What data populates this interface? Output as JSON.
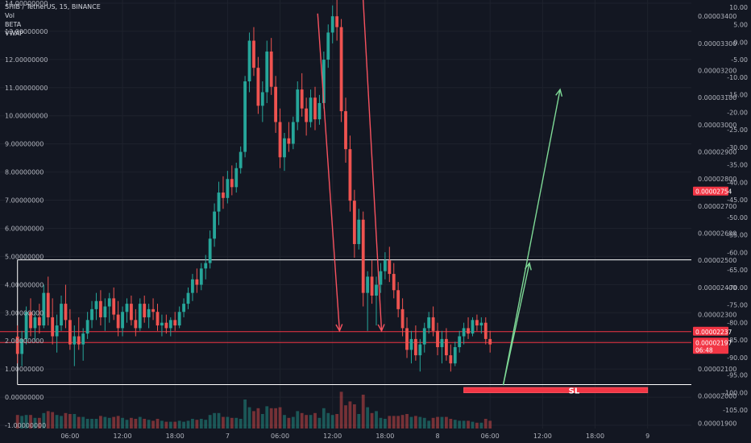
{
  "header": {
    "title": "SHIB / TetherUS, 15, BINANCE",
    "indicators": [
      "Vol",
      "BETA",
      "VWAP"
    ]
  },
  "chart_data": {
    "type": "candlestick",
    "left_axis": {
      "ticks": [
        "14.00000000",
        "13.00000000",
        "12.00000000",
        "11.00000000",
        "10.00000000",
        "9.00000000",
        "8.00000000",
        "7.00000000",
        "6.00000000",
        "5.00000000",
        "4.00000000",
        "3.00000000",
        "2.00000000",
        "1.00000000",
        "0.00000000",
        "-1.00000000"
      ],
      "values": [
        14,
        13,
        12,
        11,
        10,
        9,
        8,
        7,
        6,
        5,
        4,
        3,
        2,
        1,
        0,
        -1
      ]
    },
    "price_axis": {
      "ticks": [
        "0.00003400",
        "0.00003300",
        "0.00003200",
        "0.00003100",
        "0.00003000",
        "0.00002900",
        "0.00002800",
        "0.00002700",
        "0.00002600",
        "0.00002500",
        "0.00002400",
        "0.00002300",
        "0.00002100",
        "0.00002000",
        "0.00001900"
      ],
      "values": [
        3.4e-05,
        3.3e-05,
        3.2e-05,
        3.1e-05,
        3e-05,
        2.9e-05,
        2.8e-05,
        2.7e-05,
        2.6e-05,
        2.5e-05,
        2.4e-05,
        2.3e-05,
        2.1e-05,
        2e-05,
        1.9e-05
      ],
      "range": [
        1.88e-05,
        3.46e-05
      ]
    },
    "beta_axis": {
      "ticks": [
        "10.00",
        "5.00",
        "0.00",
        "-5.00",
        "-10.00",
        "-15.00",
        "-20.00",
        "-25.00",
        "-30.00",
        "-35.00",
        "-40.00",
        "-45.00",
        "-50.00",
        "-55.00",
        "-60.00",
        "-65.00",
        "-70.00",
        "-75.00",
        "-80.00",
        "-85.00",
        "-90.00",
        "-95.00",
        "-100.00",
        "-105.00"
      ],
      "values": [
        10,
        5,
        0,
        -5,
        -10,
        -15,
        -20,
        -25,
        -30,
        -35,
        -40,
        -45,
        -50,
        -55,
        -60,
        -65,
        -70,
        -75,
        -80,
        -85,
        -90,
        -95,
        -100,
        -105
      ]
    },
    "time_axis": {
      "ticks": [
        "06:00",
        "12:00",
        "18:00",
        "7",
        "06:00",
        "12:00",
        "18:00",
        "8",
        "06:00",
        "12:00",
        "18:00",
        "9"
      ],
      "hours": [
        6,
        12,
        18,
        24,
        30,
        36,
        42,
        48,
        54,
        60,
        66,
        72
      ],
      "range": [
        -2,
        77
      ]
    },
    "price_labels": [
      {
        "value": 2.754e-05,
        "text": "0.00002754",
        "color": "#f23645"
      },
      {
        "value": 2.237e-05,
        "text": "0.00002237",
        "color": "#f23645"
      },
      {
        "value": 2.197e-05,
        "text": "0.00002197",
        "color": "#f23645",
        "countdown": "06:48"
      }
    ],
    "horizontal_levels": [
      {
        "price": 2.502e-05,
        "color": "#ffffff"
      },
      {
        "price": 2.237e-05,
        "color": "#f23645"
      },
      {
        "price": 2.197e-05,
        "color": "#f23645"
      },
      {
        "price": 2.042e-05,
        "color": "#ffffff"
      }
    ],
    "stop_loss": {
      "label": "SL",
      "price_top": 2.031e-05,
      "price_bottom": 2.012e-05,
      "hour_start": 51,
      "hour_end": 72
    },
    "projection": [
      {
        "from_hour": 55.5,
        "from_price": 2.04e-05,
        "to_hour": 58.5,
        "to_price": 2.49e-05
      },
      {
        "from_hour": 55.5,
        "from_price": 2.04e-05,
        "to_hour": 62,
        "to_price": 3.13e-05
      }
    ],
    "red_arrows": [
      {
        "from_hour": 34.3,
        "from_price": 3.41e-05,
        "to_hour": 36.8,
        "to_price": 2.24e-05
      },
      {
        "from_hour": 39.5,
        "from_price": 3.46e-05,
        "to_hour": 41.6,
        "to_price": 2.24e-05
      }
    ],
    "candles": [
      {
        "h": 0.0,
        "o": 2.219e-05,
        "hi": 2.26e-05,
        "lo": 2.12e-05,
        "c": 2.155e-05
      },
      {
        "h": 0.5,
        "o": 2.155e-05,
        "hi": 2.24e-05,
        "lo": 2.11e-05,
        "c": 2.21e-05
      },
      {
        "h": 1.0,
        "o": 2.21e-05,
        "hi": 2.33e-05,
        "lo": 2.19e-05,
        "c": 2.31e-05
      },
      {
        "h": 1.5,
        "o": 2.31e-05,
        "hi": 2.36e-05,
        "lo": 2.22e-05,
        "c": 2.25e-05
      },
      {
        "h": 2.0,
        "o": 2.25e-05,
        "hi": 2.31e-05,
        "lo": 2.2e-05,
        "c": 2.29e-05
      },
      {
        "h": 2.5,
        "o": 2.29e-05,
        "hi": 2.34e-05,
        "lo": 2.23e-05,
        "c": 2.26e-05
      },
      {
        "h": 3.0,
        "o": 2.26e-05,
        "hi": 2.41e-05,
        "lo": 2.25e-05,
        "c": 2.38e-05
      },
      {
        "h": 3.5,
        "o": 2.38e-05,
        "hi": 2.44e-05,
        "lo": 2.26e-05,
        "c": 2.29e-05
      },
      {
        "h": 4.0,
        "o": 2.29e-05,
        "hi": 2.36e-05,
        "lo": 2.19e-05,
        "c": 2.22e-05
      },
      {
        "h": 4.5,
        "o": 2.22e-05,
        "hi": 2.3e-05,
        "lo": 2.16e-05,
        "c": 2.26e-05
      },
      {
        "h": 5.0,
        "o": 2.26e-05,
        "hi": 2.37e-05,
        "lo": 2.24e-05,
        "c": 2.34e-05
      },
      {
        "h": 5.5,
        "o": 2.34e-05,
        "hi": 2.41e-05,
        "lo": 2.25e-05,
        "c": 2.28e-05
      },
      {
        "h": 6.0,
        "o": 2.28e-05,
        "hi": 2.32e-05,
        "lo": 2.17e-05,
        "c": 2.19e-05
      },
      {
        "h": 6.5,
        "o": 2.19e-05,
        "hi": 2.26e-05,
        "lo": 2.11e-05,
        "c": 2.22e-05
      },
      {
        "h": 7.0,
        "o": 2.22e-05,
        "hi": 2.29e-05,
        "lo": 2.17e-05,
        "c": 2.19e-05
      },
      {
        "h": 7.5,
        "o": 2.19e-05,
        "hi": 2.25e-05,
        "lo": 2.13e-05,
        "c": 2.23e-05
      },
      {
        "h": 8.0,
        "o": 2.23e-05,
        "hi": 2.31e-05,
        "lo": 2.21e-05,
        "c": 2.28e-05
      },
      {
        "h": 8.5,
        "o": 2.28e-05,
        "hi": 2.35e-05,
        "lo": 2.25e-05,
        "c": 2.32e-05
      },
      {
        "h": 9.0,
        "o": 2.32e-05,
        "hi": 2.38e-05,
        "lo": 2.28e-05,
        "c": 2.35e-05
      },
      {
        "h": 9.5,
        "o": 2.35e-05,
        "hi": 2.39e-05,
        "lo": 2.26e-05,
        "c": 2.29e-05
      },
      {
        "h": 10.0,
        "o": 2.29e-05,
        "hi": 2.36e-05,
        "lo": 2.24e-05,
        "c": 2.33e-05
      },
      {
        "h": 10.5,
        "o": 2.33e-05,
        "hi": 2.38e-05,
        "lo": 2.27e-05,
        "c": 2.36e-05
      },
      {
        "h": 11.0,
        "o": 2.36e-05,
        "hi": 2.4e-05,
        "lo": 2.28e-05,
        "c": 2.3e-05
      },
      {
        "h": 11.5,
        "o": 2.3e-05,
        "hi": 2.35e-05,
        "lo": 2.22e-05,
        "c": 2.25e-05
      },
      {
        "h": 12.0,
        "o": 2.25e-05,
        "hi": 2.33e-05,
        "lo": 2.22e-05,
        "c": 2.31e-05
      },
      {
        "h": 12.5,
        "o": 2.31e-05,
        "hi": 2.36e-05,
        "lo": 2.27e-05,
        "c": 2.34e-05
      },
      {
        "h": 13.0,
        "o": 2.34e-05,
        "hi": 2.37e-05,
        "lo": 2.26e-05,
        "c": 2.28e-05
      },
      {
        "h": 13.5,
        "o": 2.28e-05,
        "hi": 2.32e-05,
        "lo": 2.22e-05,
        "c": 2.25e-05
      },
      {
        "h": 14.0,
        "o": 2.25e-05,
        "hi": 2.36e-05,
        "lo": 2.24e-05,
        "c": 2.34e-05
      },
      {
        "h": 14.5,
        "o": 2.34e-05,
        "hi": 2.37e-05,
        "lo": 2.27e-05,
        "c": 2.29e-05
      },
      {
        "h": 15.0,
        "o": 2.29e-05,
        "hi": 2.34e-05,
        "lo": 2.25e-05,
        "c": 2.32e-05
      },
      {
        "h": 15.5,
        "o": 2.32e-05,
        "hi": 2.36e-05,
        "lo": 2.28e-05,
        "c": 2.31e-05
      },
      {
        "h": 16.0,
        "o": 2.31e-05,
        "hi": 2.34e-05,
        "lo": 2.24e-05,
        "c": 2.26e-05
      },
      {
        "h": 16.5,
        "o": 2.26e-05,
        "hi": 2.3e-05,
        "lo": 2.22e-05,
        "c": 2.27e-05
      },
      {
        "h": 17.0,
        "o": 2.27e-05,
        "hi": 2.3e-05,
        "lo": 2.23e-05,
        "c": 2.25e-05
      },
      {
        "h": 17.5,
        "o": 2.25e-05,
        "hi": 2.29e-05,
        "lo": 2.22e-05,
        "c": 2.28e-05
      },
      {
        "h": 18.0,
        "o": 2.28e-05,
        "hi": 2.31e-05,
        "lo": 2.24e-05,
        "c": 2.26e-05
      },
      {
        "h": 18.5,
        "o": 2.26e-05,
        "hi": 2.33e-05,
        "lo": 2.25e-05,
        "c": 2.31e-05
      },
      {
        "h": 19.0,
        "o": 2.31e-05,
        "hi": 2.36e-05,
        "lo": 2.29e-05,
        "c": 2.34e-05
      },
      {
        "h": 19.5,
        "o": 2.34e-05,
        "hi": 2.4e-05,
        "lo": 2.32e-05,
        "c": 2.38e-05
      },
      {
        "h": 20.0,
        "o": 2.38e-05,
        "hi": 2.45e-05,
        "lo": 2.35e-05,
        "c": 2.43e-05
      },
      {
        "h": 20.5,
        "o": 2.43e-05,
        "hi": 2.47e-05,
        "lo": 2.38e-05,
        "c": 2.41e-05
      },
      {
        "h": 21.0,
        "o": 2.41e-05,
        "hi": 2.49e-05,
        "lo": 2.39e-05,
        "c": 2.47e-05
      },
      {
        "h": 21.5,
        "o": 2.47e-05,
        "hi": 2.52e-05,
        "lo": 2.43e-05,
        "c": 2.49e-05
      },
      {
        "h": 22.0,
        "o": 2.49e-05,
        "hi": 2.61e-05,
        "lo": 2.47e-05,
        "c": 2.58e-05
      },
      {
        "h": 22.5,
        "o": 2.58e-05,
        "hi": 2.71e-05,
        "lo": 2.55e-05,
        "c": 2.68e-05
      },
      {
        "h": 23.0,
        "o": 2.68e-05,
        "hi": 2.79e-05,
        "lo": 2.63e-05,
        "c": 2.75e-05
      },
      {
        "h": 23.5,
        "o": 2.75e-05,
        "hi": 2.81e-05,
        "lo": 2.69e-05,
        "c": 2.73e-05
      },
      {
        "h": 24.0,
        "o": 2.73e-05,
        "hi": 2.83e-05,
        "lo": 2.71e-05,
        "c": 2.8e-05
      },
      {
        "h": 24.5,
        "o": 2.8e-05,
        "hi": 2.85e-05,
        "lo": 2.74e-05,
        "c": 2.77e-05
      },
      {
        "h": 25.0,
        "o": 2.77e-05,
        "hi": 2.86e-05,
        "lo": 2.75e-05,
        "c": 2.84e-05
      },
      {
        "h": 25.5,
        "o": 2.84e-05,
        "hi": 2.92e-05,
        "lo": 2.82e-05,
        "c": 2.9e-05
      },
      {
        "h": 26.0,
        "o": 2.9e-05,
        "hi": 3.18e-05,
        "lo": 2.88e-05,
        "c": 3.16e-05
      },
      {
        "h": 26.5,
        "o": 3.16e-05,
        "hi": 3.34e-05,
        "lo": 3.12e-05,
        "c": 3.31e-05
      },
      {
        "h": 27.0,
        "o": 3.31e-05,
        "hi": 3.36e-05,
        "lo": 3.18e-05,
        "c": 3.21e-05
      },
      {
        "h": 27.5,
        "o": 3.21e-05,
        "hi": 3.25e-05,
        "lo": 3.04e-05,
        "c": 3.07e-05
      },
      {
        "h": 28.0,
        "o": 3.07e-05,
        "hi": 3.16e-05,
        "lo": 3.01e-05,
        "c": 3.12e-05
      },
      {
        "h": 28.5,
        "o": 3.12e-05,
        "hi": 3.31e-05,
        "lo": 3.08e-05,
        "c": 3.27e-05
      },
      {
        "h": 29.0,
        "o": 3.27e-05,
        "hi": 3.32e-05,
        "lo": 3.11e-05,
        "c": 3.14e-05
      },
      {
        "h": 29.5,
        "o": 3.14e-05,
        "hi": 3.18e-05,
        "lo": 2.97e-05,
        "c": 3.01e-05
      },
      {
        "h": 30.0,
        "o": 3.01e-05,
        "hi": 3.06e-05,
        "lo": 2.84e-05,
        "c": 2.88e-05
      },
      {
        "h": 30.5,
        "o": 2.88e-05,
        "hi": 2.97e-05,
        "lo": 2.83e-05,
        "c": 2.95e-05
      },
      {
        "h": 31.0,
        "o": 2.95e-05,
        "hi": 3.01e-05,
        "lo": 2.9e-05,
        "c": 2.93e-05
      },
      {
        "h": 31.5,
        "o": 2.93e-05,
        "hi": 3.03e-05,
        "lo": 2.91e-05,
        "c": 3.01e-05
      },
      {
        "h": 32.0,
        "o": 3.01e-05,
        "hi": 3.16e-05,
        "lo": 2.98e-05,
        "c": 3.13e-05
      },
      {
        "h": 32.5,
        "o": 3.13e-05,
        "hi": 3.19e-05,
        "lo": 3.03e-05,
        "c": 3.06e-05
      },
      {
        "h": 33.0,
        "o": 3.06e-05,
        "hi": 3.1e-05,
        "lo": 2.96e-05,
        "c": 3.01e-05
      },
      {
        "h": 33.5,
        "o": 3.01e-05,
        "hi": 3.13e-05,
        "lo": 2.99e-05,
        "c": 3.1e-05
      },
      {
        "h": 34.0,
        "o": 3.1e-05,
        "hi": 3.14e-05,
        "lo": 2.98e-05,
        "c": 3.02e-05
      },
      {
        "h": 34.5,
        "o": 3.02e-05,
        "hi": 3.11e-05,
        "lo": 3e-05,
        "c": 3.08e-05
      },
      {
        "h": 35.0,
        "o": 3.08e-05,
        "hi": 3.27e-05,
        "lo": 3.06e-05,
        "c": 3.24e-05
      },
      {
        "h": 35.5,
        "o": 3.24e-05,
        "hi": 3.37e-05,
        "lo": 3.21e-05,
        "c": 3.34e-05
      },
      {
        "h": 36.0,
        "o": 3.34e-05,
        "hi": 3.44e-05,
        "lo": 3.3e-05,
        "c": 3.4e-05
      },
      {
        "h": 36.5,
        "o": 3.4e-05,
        "hi": 3.46e-05,
        "lo": 3.31e-05,
        "c": 3.36e-05
      },
      {
        "h": 37.0,
        "o": 3.36e-05,
        "hi": 3.39e-05,
        "lo": 3.01e-05,
        "c": 3.05e-05
      },
      {
        "h": 37.5,
        "o": 3.05e-05,
        "hi": 3.1e-05,
        "lo": 2.86e-05,
        "c": 2.91e-05
      },
      {
        "h": 38.0,
        "o": 2.91e-05,
        "hi": 2.96e-05,
        "lo": 2.68e-05,
        "c": 2.72e-05
      },
      {
        "h": 38.5,
        "o": 2.72e-05,
        "hi": 2.76e-05,
        "lo": 2.51e-05,
        "c": 2.56e-05
      },
      {
        "h": 39.0,
        "o": 2.56e-05,
        "hi": 2.69e-05,
        "lo": 2.54e-05,
        "c": 2.65e-05
      },
      {
        "h": 39.5,
        "o": 2.65e-05,
        "hi": 2.68e-05,
        "lo": 2.33e-05,
        "c": 2.38e-05
      },
      {
        "h": 40.0,
        "o": 2.38e-05,
        "hi": 2.46e-05,
        "lo": 2.24e-05,
        "c": 2.44e-05
      },
      {
        "h": 40.5,
        "o": 2.44e-05,
        "hi": 2.5e-05,
        "lo": 2.34e-05,
        "c": 2.37e-05
      },
      {
        "h": 41.0,
        "o": 2.37e-05,
        "hi": 2.44e-05,
        "lo": 2.26e-05,
        "c": 2.41e-05
      },
      {
        "h": 41.5,
        "o": 2.41e-05,
        "hi": 2.49e-05,
        "lo": 2.38e-05,
        "c": 2.46e-05
      },
      {
        "h": 42.0,
        "o": 2.46e-05,
        "hi": 2.53e-05,
        "lo": 2.43e-05,
        "c": 2.5e-05
      },
      {
        "h": 42.5,
        "o": 2.5e-05,
        "hi": 2.55e-05,
        "lo": 2.42e-05,
        "c": 2.45e-05
      },
      {
        "h": 43.0,
        "o": 2.45e-05,
        "hi": 2.49e-05,
        "lo": 2.36e-05,
        "c": 2.39e-05
      },
      {
        "h": 43.5,
        "o": 2.39e-05,
        "hi": 2.42e-05,
        "lo": 2.29e-05,
        "c": 2.32e-05
      },
      {
        "h": 44.0,
        "o": 2.32e-05,
        "hi": 2.36e-05,
        "lo": 2.22e-05,
        "c": 2.25e-05
      },
      {
        "h": 44.5,
        "o": 2.25e-05,
        "hi": 2.29e-05,
        "lo": 2.14e-05,
        "c": 2.17e-05
      },
      {
        "h": 45.0,
        "o": 2.17e-05,
        "hi": 2.24e-05,
        "lo": 2.12e-05,
        "c": 2.21e-05
      },
      {
        "h": 45.5,
        "o": 2.21e-05,
        "hi": 2.26e-05,
        "lo": 2.13e-05,
        "c": 2.15e-05
      },
      {
        "h": 46.0,
        "o": 2.15e-05,
        "hi": 2.21e-05,
        "lo": 2.09e-05,
        "c": 2.19e-05
      },
      {
        "h": 46.5,
        "o": 2.19e-05,
        "hi": 2.27e-05,
        "lo": 2.16e-05,
        "c": 2.25e-05
      },
      {
        "h": 47.0,
        "o": 2.25e-05,
        "hi": 2.31e-05,
        "lo": 2.23e-05,
        "c": 2.29e-05
      },
      {
        "h": 47.5,
        "o": 2.29e-05,
        "hi": 2.33e-05,
        "lo": 2.22e-05,
        "c": 2.24e-05
      },
      {
        "h": 48.0,
        "o": 2.24e-05,
        "hi": 2.27e-05,
        "lo": 2.15e-05,
        "c": 2.18e-05
      },
      {
        "h": 48.5,
        "o": 2.18e-05,
        "hi": 2.24e-05,
        "lo": 2.12e-05,
        "c": 2.21e-05
      },
      {
        "h": 49.0,
        "o": 2.21e-05,
        "hi": 2.25e-05,
        "lo": 2.13e-05,
        "c": 2.15e-05
      },
      {
        "h": 49.5,
        "o": 2.15e-05,
        "hi": 2.19e-05,
        "lo": 2.09e-05,
        "c": 2.12e-05
      },
      {
        "h": 50.0,
        "o": 2.12e-05,
        "hi": 2.2e-05,
        "lo": 2.11e-05,
        "c": 2.18e-05
      },
      {
        "h": 50.5,
        "o": 2.18e-05,
        "hi": 2.24e-05,
        "lo": 2.16e-05,
        "c": 2.22e-05
      },
      {
        "h": 51.0,
        "o": 2.22e-05,
        "hi": 2.27e-05,
        "lo": 2.19e-05,
        "c": 2.25e-05
      },
      {
        "h": 51.5,
        "o": 2.25e-05,
        "hi": 2.29e-05,
        "lo": 2.21e-05,
        "c": 2.23e-05
      },
      {
        "h": 52.0,
        "o": 2.23e-05,
        "hi": 2.29e-05,
        "lo": 2.22e-05,
        "c": 2.28e-05
      },
      {
        "h": 52.5,
        "o": 2.28e-05,
        "hi": 2.3e-05,
        "lo": 2.24e-05,
        "c": 2.26e-05
      },
      {
        "h": 53.0,
        "o": 2.26e-05,
        "hi": 2.29e-05,
        "lo": 2.23e-05,
        "c": 2.27e-05
      },
      {
        "h": 53.5,
        "o": 2.27e-05,
        "hi": 2.29e-05,
        "lo": 2.19e-05,
        "c": 2.21e-05
      },
      {
        "h": 54.0,
        "o": 2.21e-05,
        "hi": 2.24e-05,
        "lo": 2.16e-05,
        "c": 2.19e-05
      }
    ]
  }
}
